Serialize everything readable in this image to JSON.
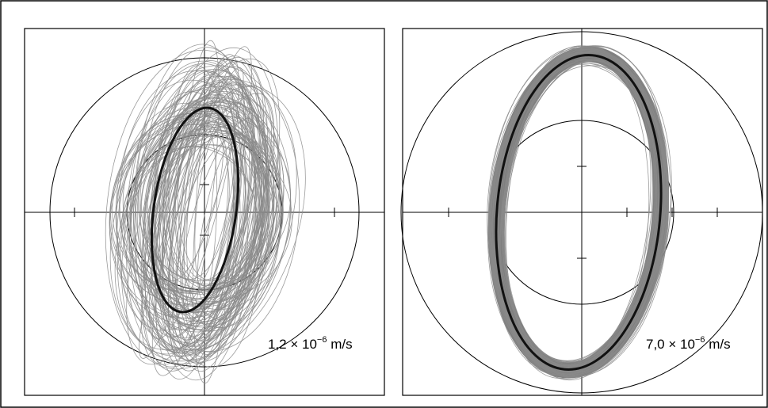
{
  "panels": [
    {
      "id": "left",
      "scale_label": {
        "prefix": "1,2 × 10",
        "exponent": "−6",
        "unit": " m/s"
      }
    },
    {
      "id": "right",
      "scale_label": {
        "prefix": "7,0 × 10",
        "exponent": "−6",
        "unit": " m/s"
      }
    }
  ],
  "colors": {
    "trace": "#8a8a8a",
    "mean_orbit": "#111111",
    "axes": "#000000"
  }
}
